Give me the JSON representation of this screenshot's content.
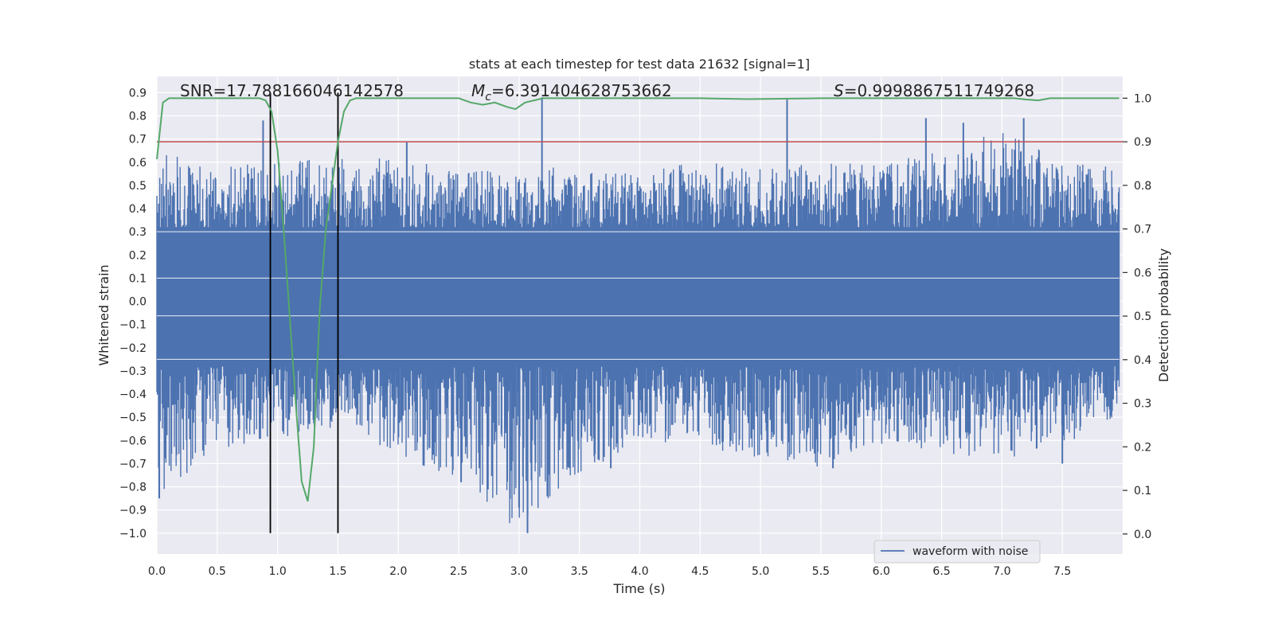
{
  "chart_data": {
    "type": "line",
    "title": "stats at each timestep for test data 21632 [signal=1]",
    "xlabel": "Time (s)",
    "ylabel": "Whitened strain",
    "y2label": "Detection probability",
    "xlim": [
      0.0,
      8.0
    ],
    "ylim": [
      -1.09,
      0.97
    ],
    "y2lim": [
      -0.046,
      1.05
    ],
    "x_ticks": [
      0.0,
      0.5,
      1.0,
      1.5,
      2.0,
      2.5,
      3.0,
      3.5,
      4.0,
      4.5,
      5.0,
      5.5,
      6.0,
      6.5,
      7.0,
      7.5
    ],
    "x_tick_labels": [
      "0.0",
      "0.5",
      "1.0",
      "1.5",
      "2.0",
      "2.5",
      "3.0",
      "3.5",
      "4.0",
      "4.5",
      "5.0",
      "5.5",
      "6.0",
      "6.5",
      "7.0",
      "7.5"
    ],
    "y_ticks": [
      0.9,
      0.8,
      0.7,
      0.6,
      0.5,
      0.4,
      0.3,
      0.2,
      0.1,
      0.0,
      -0.1,
      -0.2,
      -0.3,
      -0.4,
      -0.5,
      -0.6,
      -0.7,
      -0.8,
      -0.9,
      -1.0
    ],
    "y_tick_labels": [
      "0.9",
      "0.8",
      "0.7",
      "0.6",
      "0.5",
      "0.4",
      "0.3",
      "0.2",
      "0.1",
      "0.0",
      "−0.1",
      "−0.2",
      "−0.3",
      "−0.4",
      "−0.5",
      "−0.6",
      "−0.7",
      "−0.8",
      "−0.9",
      "−1.0"
    ],
    "y2_ticks": [
      1.0,
      0.9,
      0.8,
      0.7,
      0.6,
      0.5,
      0.4,
      0.3,
      0.2,
      0.1,
      0.0
    ],
    "y2_tick_labels": [
      "1.0",
      "0.9",
      "0.8",
      "0.7",
      "0.6",
      "0.5",
      "0.4",
      "0.3",
      "0.2",
      "0.1",
      "0.0"
    ],
    "annotations": {
      "snr": "SNR=17.788166046142578",
      "mc_symbol": "M",
      "mc_subscript": "c",
      "mc_value": "=6.391404628753662",
      "s_symbol": "S",
      "s_value": "=0.9998867511749268"
    },
    "legend": {
      "position": "lower-right",
      "entries": [
        "waveform with noise"
      ]
    },
    "grid": true,
    "colors": {
      "background": "#eaeaf2",
      "waveform": "#4c72b0",
      "probability": "#55a868",
      "threshold": "#c44e52",
      "markers": "#000000",
      "grid": "#ffffff"
    },
    "waveform_envelope": {
      "x": [
        0.0,
        0.5,
        1.0,
        1.5,
        2.0,
        2.5,
        3.0,
        3.5,
        4.0,
        4.5,
        5.0,
        5.5,
        6.0,
        6.5,
        7.0,
        7.5,
        7.97
      ],
      "upper": [
        0.65,
        0.58,
        0.6,
        0.62,
        0.63,
        0.55,
        0.6,
        0.56,
        0.58,
        0.6,
        0.58,
        0.6,
        0.6,
        0.65,
        0.75,
        0.6,
        0.58
      ],
      "lower": [
        -0.85,
        -0.65,
        -0.6,
        -0.55,
        -0.66,
        -0.78,
        -1.0,
        -0.76,
        -0.6,
        -0.63,
        -0.68,
        -0.72,
        -0.62,
        -0.65,
        -0.7,
        -0.62,
        -0.5
      ]
    },
    "waveform_peaks": [
      {
        "x": 0.88,
        "y": 0.78
      },
      {
        "x": 3.19,
        "y": 0.88
      },
      {
        "x": 5.22,
        "y": 0.87
      },
      {
        "x": 6.37,
        "y": 0.79
      },
      {
        "x": 6.68,
        "y": 0.77
      },
      {
        "x": 7.18,
        "y": 0.79
      },
      {
        "x": 2.07,
        "y": 0.69
      },
      {
        "x": 3.07,
        "y": -1.0
      },
      {
        "x": 3.0,
        "y": -0.89
      },
      {
        "x": 0.02,
        "y": -0.85
      },
      {
        "x": 2.52,
        "y": -0.78
      },
      {
        "x": 3.76,
        "y": -0.72
      },
      {
        "x": 5.6,
        "y": -0.72
      },
      {
        "x": 7.5,
        "y": -0.7
      }
    ],
    "threshold": 0.9,
    "markers_x": [
      0.94,
      1.5
    ],
    "marker_y_range": [
      -1.0,
      0.9
    ],
    "series": [
      {
        "name": "waveform with noise",
        "axis": "left",
        "values_note_envelope": true
      },
      {
        "axis": "right",
        "x": [
          0.0,
          0.05,
          0.1,
          0.3,
          0.6,
          0.85,
          0.9,
          0.95,
          1.0,
          1.05,
          1.1,
          1.15,
          1.2,
          1.25,
          1.3,
          1.35,
          1.4,
          1.45,
          1.5,
          1.55,
          1.6,
          1.65,
          1.8,
          2.5,
          2.6,
          2.7,
          2.8,
          2.9,
          2.97,
          3.05,
          3.2,
          3.6,
          4.5,
          4.9,
          5.5,
          6.0,
          6.8,
          7.1,
          7.2,
          7.3,
          7.4,
          7.97
        ],
        "y": [
          0.86,
          0.99,
          1.0,
          1.0,
          1.0,
          1.0,
          0.995,
          0.97,
          0.88,
          0.7,
          0.5,
          0.3,
          0.12,
          0.075,
          0.2,
          0.52,
          0.7,
          0.8,
          0.9,
          0.97,
          0.995,
          1.0,
          1.0,
          1.0,
          0.99,
          0.985,
          0.99,
          0.98,
          0.975,
          0.99,
          1.0,
          1.0,
          1.0,
          0.998,
          1.0,
          1.0,
          1.0,
          1.0,
          0.997,
          0.995,
          1.0,
          1.0
        ]
      }
    ]
  }
}
